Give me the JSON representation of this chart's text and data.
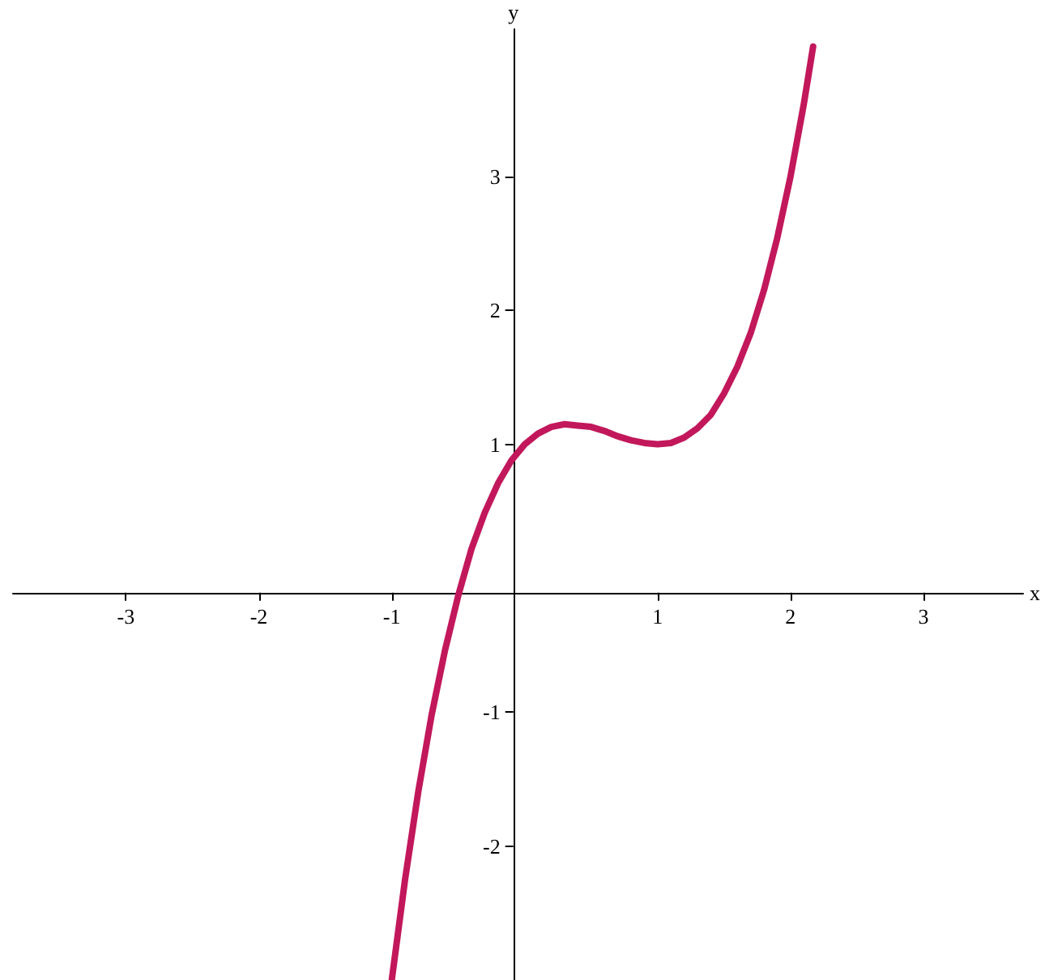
{
  "chart_data": {
    "type": "line",
    "xlabel": "x",
    "ylabel": "y",
    "xlim": [
      -3.85,
      3.75
    ],
    "ylim": [
      -3,
      4.1
    ],
    "xticks": [
      -3,
      -2,
      -1,
      1,
      2,
      3
    ],
    "yticks": [
      -2,
      -1,
      1,
      2,
      3
    ],
    "grid": false,
    "marker": "none",
    "line_style": "solid",
    "series": [
      {
        "color": "#c2185b",
        "x": [
          -1.0,
          -0.9,
          -0.8,
          -0.7,
          -0.6,
          -0.5,
          -0.4,
          -0.3,
          -0.2,
          -0.1,
          0,
          0.1,
          0.2,
          0.3,
          0.4,
          0.5,
          0.6,
          0.7,
          0.8,
          0.9,
          1.0,
          1.1,
          1.2,
          1.3,
          1.4,
          1.5,
          1.6,
          1.7,
          1.8,
          1.9,
          2.0,
          2.1,
          2.17
        ],
        "values": [
          -3,
          -2.25,
          -1.59,
          -1.02,
          -0.54,
          -0.13,
          0.22,
          0.49,
          0.71,
          0.88,
          1,
          1.08,
          1.13,
          1.15,
          1.14,
          1.13,
          1.1,
          1.06,
          1.03,
          1.01,
          1,
          1.01,
          1.05,
          1.12,
          1.22,
          1.38,
          1.58,
          1.83,
          2.15,
          2.54,
          3,
          3.54,
          3.97
        ]
      }
    ]
  }
}
